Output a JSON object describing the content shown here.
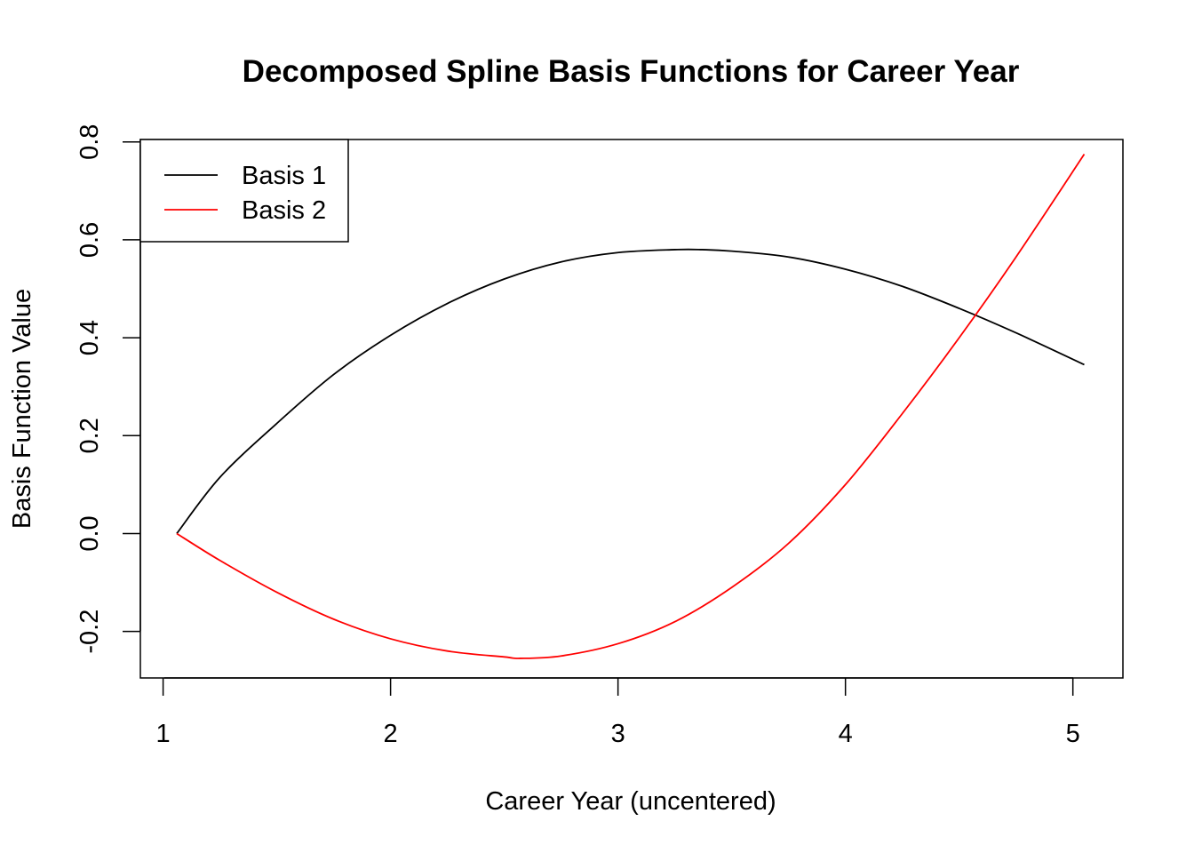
{
  "chart_data": {
    "type": "line",
    "title": "Decomposed Spline Basis Functions for Career Year",
    "xlabel": "Career Year (uncentered)",
    "ylabel": "Basis Function Value",
    "xlim": [
      0.9,
      5.22
    ],
    "ylim": [
      -0.295,
      0.805
    ],
    "xticks": [
      1,
      2,
      3,
      4,
      5
    ],
    "yticks": [
      -0.2,
      0.0,
      0.2,
      0.4,
      0.6,
      0.8
    ],
    "xtick_labels": [
      "1",
      "2",
      "3",
      "4",
      "5"
    ],
    "ytick_labels": [
      "-0.2",
      "0.0",
      "0.2",
      "0.4",
      "0.6",
      "0.8"
    ],
    "grid": false,
    "legend_position": "top-left",
    "series": [
      {
        "name": "Basis 1",
        "color": "#000000",
        "x": [
          1.06,
          1.25,
          1.5,
          1.75,
          2.0,
          2.25,
          2.5,
          2.75,
          3.0,
          3.25,
          3.37,
          3.5,
          3.75,
          4.0,
          4.25,
          4.5,
          4.75,
          5.05
        ],
        "y": [
          0.0,
          0.115,
          0.225,
          0.325,
          0.405,
          0.47,
          0.52,
          0.555,
          0.574,
          0.58,
          0.58,
          0.577,
          0.565,
          0.54,
          0.505,
          0.46,
          0.41,
          0.345
        ]
      },
      {
        "name": "Basis 2",
        "color": "#ff0000",
        "x": [
          1.06,
          1.25,
          1.5,
          1.75,
          2.0,
          2.25,
          2.5,
          2.57,
          2.75,
          3.0,
          3.25,
          3.5,
          3.75,
          4.0,
          4.25,
          4.5,
          4.75,
          5.05
        ],
        "y": [
          0.0,
          -0.055,
          -0.12,
          -0.175,
          -0.215,
          -0.24,
          -0.252,
          -0.255,
          -0.25,
          -0.225,
          -0.18,
          -0.11,
          -0.02,
          0.1,
          0.245,
          0.4,
          0.565,
          0.775
        ]
      }
    ]
  }
}
